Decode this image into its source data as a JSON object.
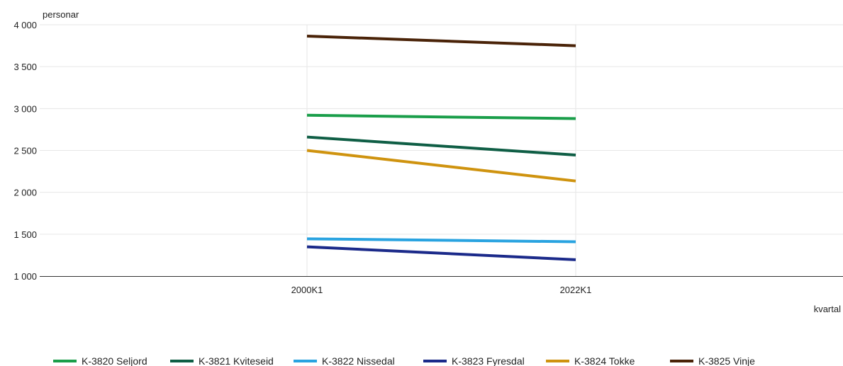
{
  "chart_data": {
    "type": "line",
    "ylabel": "personar",
    "xlabel": "kvartal",
    "categories": [
      "2000K1",
      "2022K1"
    ],
    "ylim": [
      1000,
      4000
    ],
    "yticks": [
      1000,
      1500,
      2000,
      2500,
      3000,
      3500,
      4000
    ],
    "ytick_labels": [
      "1 000",
      "1 500",
      "2 000",
      "2 500",
      "3 000",
      "3 500",
      "4 000"
    ],
    "grid": true,
    "legend_position": "bottom",
    "series": [
      {
        "name": "K-3820 Seljord",
        "color": "#1a9e4a",
        "values": [
          2920,
          2880
        ]
      },
      {
        "name": "K-3821 Kviteseid",
        "color": "#0f5e45",
        "values": [
          2660,
          2445
        ]
      },
      {
        "name": "K-3822 Nissedal",
        "color": "#29a3e0",
        "values": [
          1445,
          1410
        ]
      },
      {
        "name": "K-3823 Fyresdal",
        "color": "#1b2a8a",
        "values": [
          1350,
          1195
        ]
      },
      {
        "name": "K-3824 Tokke",
        "color": "#cf930f",
        "values": [
          2500,
          2135
        ]
      },
      {
        "name": "K-3825 Vinje",
        "color": "#4a2308",
        "values": [
          3865,
          3750
        ]
      }
    ]
  }
}
